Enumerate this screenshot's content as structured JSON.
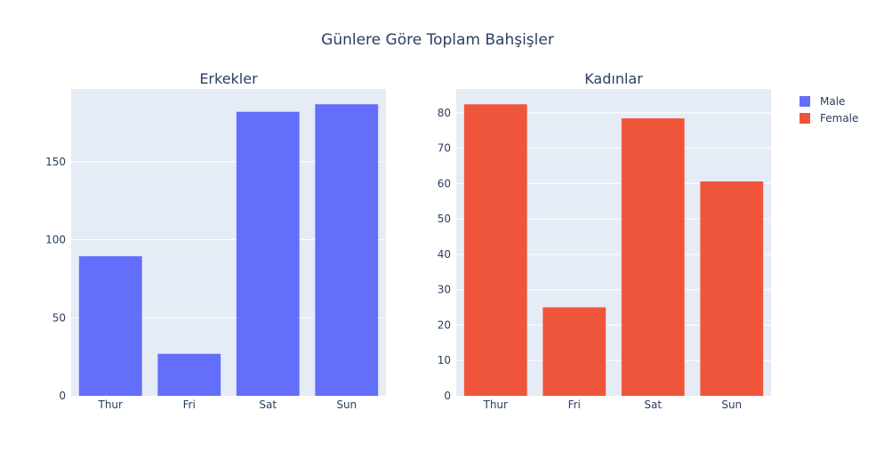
{
  "chart_data": {
    "type": "bar",
    "title": "Günlere Göre Toplam Bahşişler",
    "categories": [
      "Thur",
      "Fri",
      "Sat",
      "Sun"
    ],
    "legend_position": "top-right",
    "grid": true,
    "subplots": [
      {
        "title": "Erkekler",
        "series_name": "Male",
        "color": "#636efa",
        "values": [
          89.41,
          26.93,
          181.95,
          186.78
        ],
        "ylim": [
          0,
          196.6
        ],
        "yticks": [
          0,
          50,
          100,
          150
        ]
      },
      {
        "title": "Kadınlar",
        "series_name": "Female",
        "color": "#ef553b",
        "values": [
          82.42,
          25.03,
          78.45,
          60.61
        ],
        "ylim": [
          0,
          86.76
        ],
        "yticks": [
          0,
          10,
          20,
          30,
          40,
          50,
          60,
          70,
          80
        ]
      }
    ],
    "legend": [
      {
        "name": "Male",
        "color": "#636efa"
      },
      {
        "name": "Female",
        "color": "#ef553b"
      }
    ]
  },
  "colors": {
    "plot_bg": "#e5ecf6",
    "grid": "#ffffff",
    "text": "#2a3f5f"
  }
}
